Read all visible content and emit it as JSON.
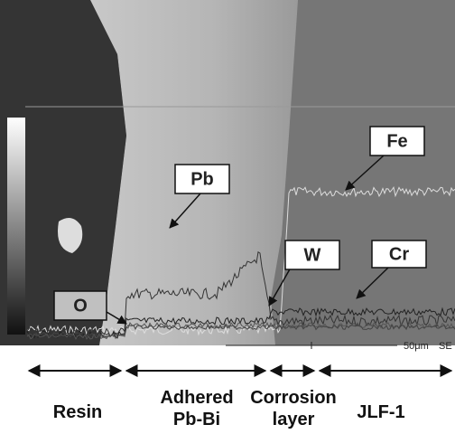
{
  "elements": [
    {
      "label": "Pb"
    },
    {
      "label": "Fe"
    },
    {
      "label": "W"
    },
    {
      "label": "Cr"
    },
    {
      "label": "O"
    }
  ],
  "scale_bar": {
    "length": "50μm",
    "mode": "SE"
  },
  "regions": [
    {
      "lines": [
        "Resin"
      ]
    },
    {
      "lines": [
        "Adhered",
        "Pb-Bi"
      ]
    },
    {
      "lines": [
        "Corrosion",
        "layer"
      ]
    },
    {
      "lines": [
        "JLF-1"
      ]
    }
  ]
}
